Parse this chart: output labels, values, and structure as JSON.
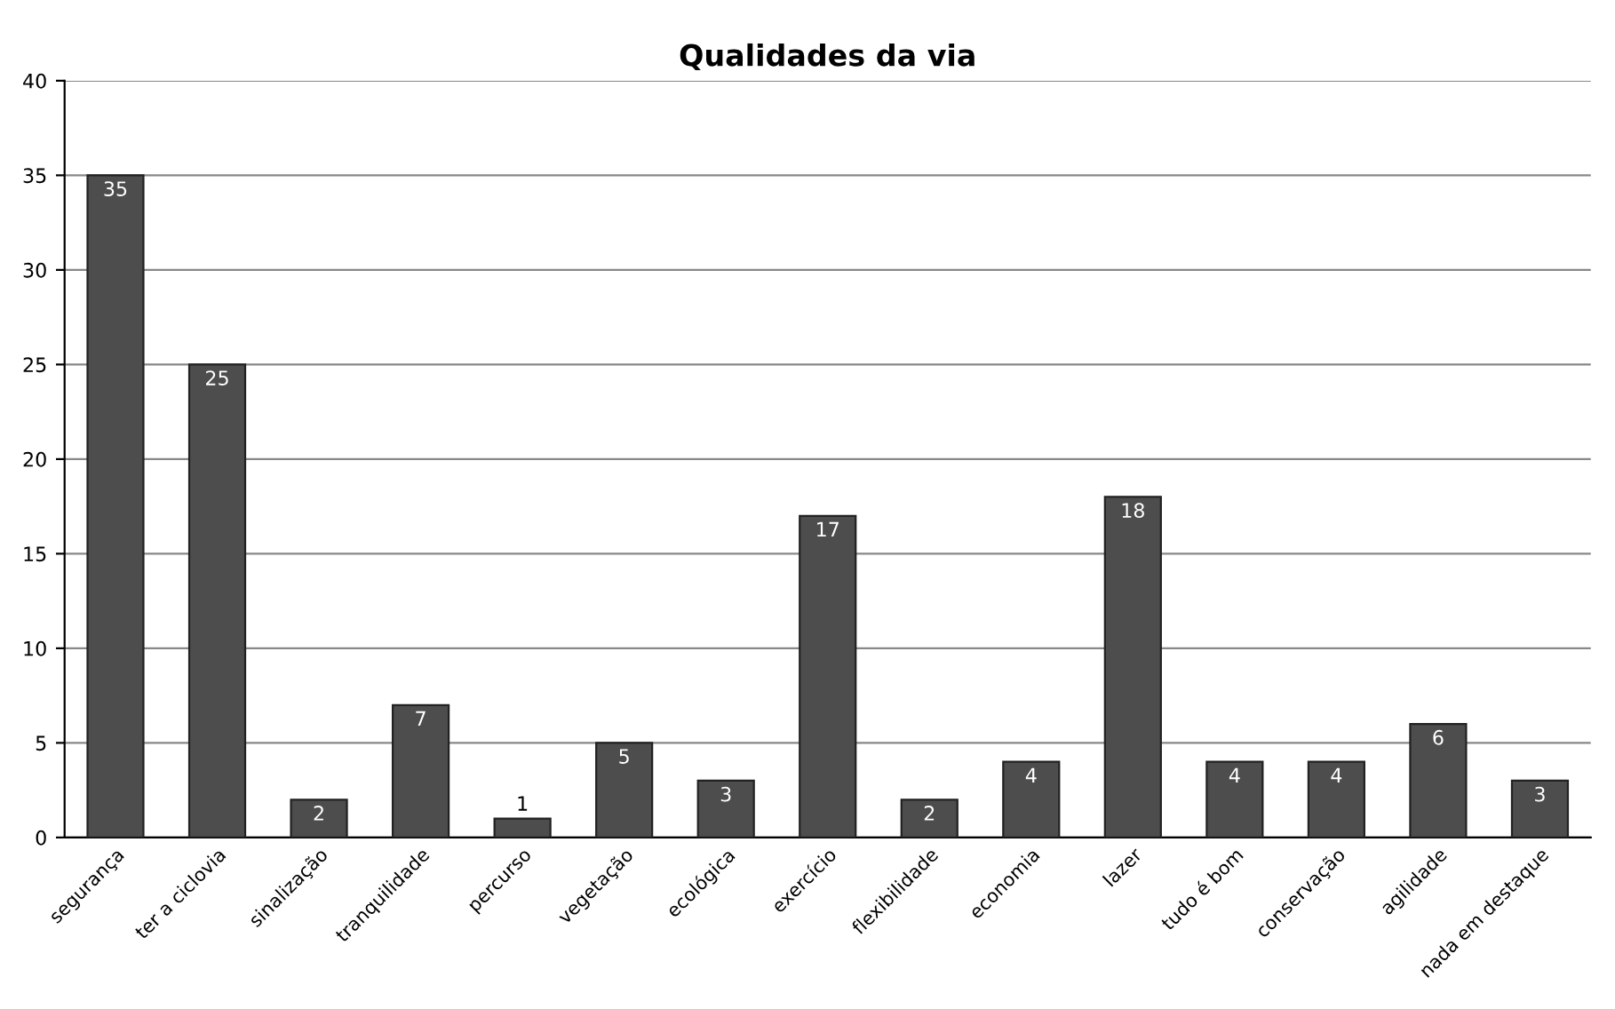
{
  "chart_data": {
    "type": "bar",
    "title": "Qualidades da via",
    "categories": [
      "segurança",
      "ter a ciclovia",
      "sinalização",
      "tranquilidade",
      "percurso",
      "vegetação",
      "ecológica",
      "exercício",
      "flexibilidade",
      "economia",
      "lazer",
      "tudo é bom",
      "conservação",
      "agilidade",
      "nada em destaque"
    ],
    "values": [
      35,
      25,
      2,
      7,
      1,
      5,
      3,
      17,
      2,
      4,
      18,
      4,
      4,
      6,
      3
    ],
    "color": "#4d4d4d",
    "ylim": [
      0,
      40
    ],
    "yticks": [
      0,
      5,
      10,
      15,
      20,
      25,
      30,
      35,
      40
    ],
    "grid": "y",
    "data_labels": true
  }
}
